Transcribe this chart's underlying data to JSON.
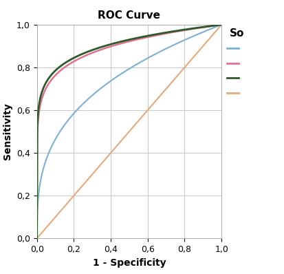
{
  "title": "ROC Curve",
  "xlabel": "1 - Specificity",
  "ylabel": "Sensitivity",
  "xlim": [
    0.0,
    1.0
  ],
  "ylim": [
    0.0,
    1.0
  ],
  "xticks": [
    0.0,
    0.2,
    0.4,
    0.6,
    0.8,
    1.0
  ],
  "yticks": [
    0.0,
    0.2,
    0.4,
    0.6,
    0.8,
    1.0
  ],
  "tick_labels": [
    "0,0",
    "0,2",
    "0,4",
    "0,6",
    "0,8",
    "1,0"
  ],
  "legend_title": "So",
  "model1_color": "#7ab0d4",
  "model1_auc": 0.75,
  "model1_lw": 1.5,
  "model2_color": "#e07090",
  "model2_auc": 0.895,
  "model2_lw": 1.8,
  "model3_color": "#2d5a27",
  "model3_auc": 0.905,
  "model3_lw": 2.0,
  "ref_color": "#e8a87c",
  "ref_lw": 1.5,
  "background_color": "#ffffff",
  "grid_color": "#c8c8c8",
  "title_fontsize": 11,
  "label_fontsize": 10,
  "tick_fontsize": 9,
  "legend_title_fontsize": 10,
  "figsize": [
    4.13,
    3.98
  ],
  "dpi": 100
}
